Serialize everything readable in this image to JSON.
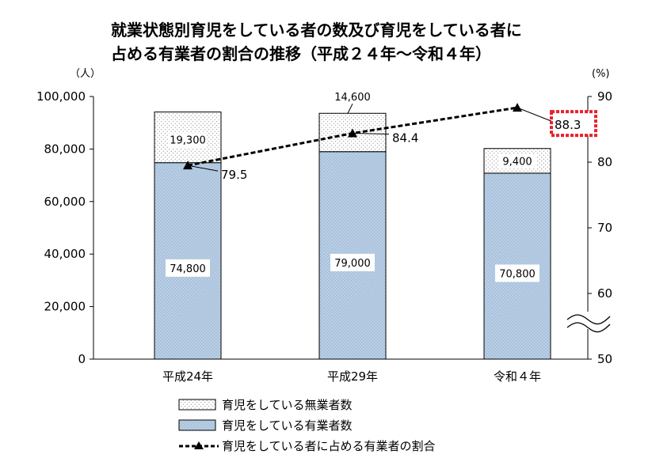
{
  "chart_data": {
    "type": "bar",
    "title_lines": [
      "就業状態別育児をしている者の数及び育児をしている者に",
      "占める有業者の割合の推移（平成２４年～令和４年）"
    ],
    "categories": [
      "平成24年",
      "平成29年",
      "令和４年"
    ],
    "left_unit": "（人）",
    "right_unit": "(%)",
    "left_ticks": [
      "0",
      "20,000",
      "40,000",
      "60,000",
      "80,000",
      "100,000"
    ],
    "right_ticks": [
      "50",
      "60",
      "70",
      "80",
      "90"
    ],
    "ylim": [
      0,
      100000
    ],
    "y2lim": [
      50,
      90
    ],
    "stacked": true,
    "series": [
      {
        "name": "育児をしている有業者数",
        "values": [
          74800,
          79000,
          70800
        ],
        "labels": [
          "74,800",
          "79,000",
          "70,800"
        ],
        "color": "#b8cfe6",
        "pattern": "dots"
      },
      {
        "name": "育児をしている無業者数",
        "values": [
          19300,
          14600,
          9400
        ],
        "labels": [
          "19,300",
          "14,600",
          "9,400"
        ],
        "color": "#ffffff",
        "pattern": "dots"
      }
    ],
    "line_series": {
      "name": "育児をしている者に占める有業者の割合",
      "values": [
        79.5,
        84.4,
        88.3
      ],
      "labels": [
        "79.5",
        "84.4",
        "88.3"
      ],
      "axis": "right",
      "style": "dashed",
      "marker": "triangle",
      "highlight_index": 2,
      "highlight_color": "#e8212e"
    },
    "axis_break": "right",
    "legend_position": "bottom-center",
    "grid": false
  }
}
